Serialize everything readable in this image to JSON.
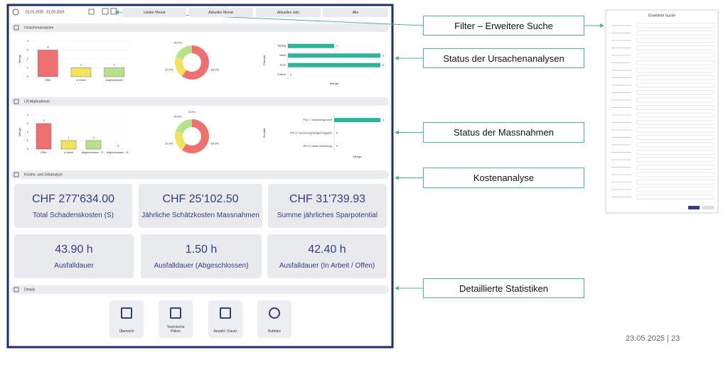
{
  "toolbar": {
    "date_range": "01.01.2025 - 01.05.2025",
    "buttons": [
      "Letzter Monat",
      "Aktueller Monat",
      "Aktuelles Jahr",
      "Alle"
    ]
  },
  "sections": [
    {
      "title": "Ursachenanalysen",
      "charts": [
        {
          "type": "bar",
          "y_label": "Menge",
          "categories": [
            "Offen",
            "In Arbeit",
            "Abgeschlossen"
          ],
          "values": [
            3,
            1,
            1
          ],
          "colors": [
            "#f07070",
            "#f3e25c",
            "#b6e38a"
          ],
          "ylim": [
            0,
            4
          ],
          "yticks": [
            0,
            1,
            2,
            3,
            4
          ]
        },
        {
          "type": "donut",
          "values": [
            60,
            20,
            20
          ],
          "value_labels": [
            "60.0%",
            "20.0%",
            "20.0%"
          ],
          "colors": [
            "#f07070",
            "#f3e25c",
            "#b6e38a"
          ]
        },
        {
          "type": "hbar",
          "y_label": "Priorität",
          "x_label": "Menge",
          "categories": [
            "Niedrig",
            "Mittel",
            "Hoch",
            "Kritisch"
          ],
          "values": [
            1,
            2,
            2,
            0
          ],
          "xlim": [
            0,
            2
          ],
          "color": "#2fb39a"
        }
      ]
    },
    {
      "title": "LR-Maßnahmen",
      "charts": [
        {
          "type": "bar",
          "y_label": "Menge",
          "categories": [
            "Offen",
            "In Arbeit",
            "Abgeschlossen - E...",
            "Abgeschlossen - N..."
          ],
          "values": [
            3,
            1,
            1,
            0
          ],
          "colors": [
            "#f07070",
            "#f3e25c",
            "#b6e38a",
            "#7cc86a"
          ],
          "ylim": [
            0,
            4
          ],
          "yticks": [
            0,
            1,
            2,
            3,
            4
          ]
        },
        {
          "type": "donut",
          "values": [
            60,
            20,
            20,
            0
          ],
          "value_labels": [
            "60.0%",
            "20.0%",
            "20.0%",
            "0.0%"
          ],
          "colors": [
            "#f07070",
            "#f3e25c",
            "#b6e38a",
            "#7cc86a"
          ]
        },
        {
          "type": "hbar",
          "y_label": "Priorität",
          "x_label": "Menge",
          "categories": [
            "Prio 1 / Umsetzung sofort",
            "Prio 2 / Umsetzung Budget Folgejahr",
            "Prio 3 / keine Umsetzung"
          ],
          "values": [
            1,
            0,
            0
          ],
          "xlim": [
            0,
            1
          ],
          "color": "#2fb39a"
        }
      ]
    },
    {
      "title": "Kosten- und Zeitanalyse",
      "cards": [
        {
          "value": "CHF 277'634.00",
          "label": "Total Schadenskosten (S)"
        },
        {
          "value": "CHF 25'102.50",
          "label": "Jährliche Schätzkosten Massnahmen"
        },
        {
          "value": "CHF 31'739.93",
          "label": "Summe jährliches Sparpotential"
        },
        {
          "value": "43.90 h",
          "label": "Ausfalldauer"
        },
        {
          "value": "1.50 h",
          "label": "Ausfalldauer (Abgeschlossen)"
        },
        {
          "value": "42.40 h",
          "label": "Ausfalldauer (In Arbeit / Offen)"
        }
      ]
    },
    {
      "title": "Details",
      "tiles": [
        "Übersicht",
        "Technische Plätze",
        "Anzahl / Dauer",
        "Bubbles"
      ]
    }
  ],
  "callouts": [
    "Filter – Erweitere Suche",
    "Status der Ursachenanalysen",
    "Status der Massnahmen",
    "Kostenanalyse",
    "Detaillierte Statistiken"
  ],
  "filter_form": {
    "title": "Erweiterte Suche"
  },
  "footer": "23.05.2025 | 23"
}
